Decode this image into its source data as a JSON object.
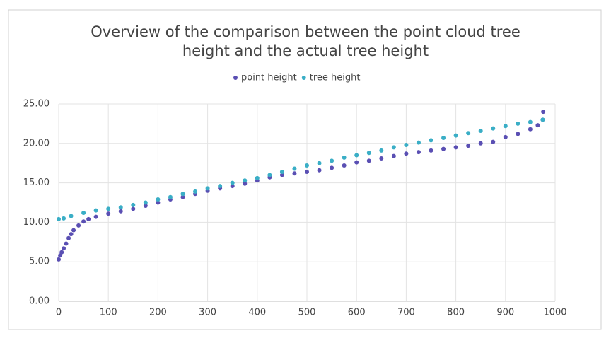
{
  "chart_data": {
    "type": "scatter",
    "title": [
      "Overview of the comparison between the point cloud tree",
      "height and the actual tree height"
    ],
    "series": [
      {
        "name": "point height",
        "color": "#5a4fb3",
        "x": [
          0,
          3,
          6,
          10,
          15,
          20,
          25,
          30,
          40,
          50,
          60,
          75,
          100,
          125,
          150,
          175,
          200,
          225,
          250,
          275,
          300,
          325,
          350,
          375,
          400,
          425,
          450,
          475,
          500,
          525,
          550,
          575,
          600,
          625,
          650,
          675,
          700,
          725,
          750,
          775,
          800,
          825,
          850,
          875,
          900,
          925,
          950,
          965,
          975,
          976
        ],
        "values": [
          5.3,
          5.8,
          6.2,
          6.7,
          7.3,
          8.0,
          8.5,
          9.0,
          9.6,
          10.1,
          10.4,
          10.7,
          11.1,
          11.4,
          11.7,
          12.1,
          12.5,
          12.9,
          13.2,
          13.6,
          14.0,
          14.3,
          14.6,
          14.9,
          15.3,
          15.7,
          16.0,
          16.2,
          16.4,
          16.6,
          16.9,
          17.2,
          17.6,
          17.8,
          18.1,
          18.4,
          18.7,
          18.9,
          19.1,
          19.3,
          19.5,
          19.7,
          20.0,
          20.2,
          20.8,
          21.2,
          21.8,
          22.3,
          23.0,
          24.0
        ]
      },
      {
        "name": "tree height",
        "color": "#3aaec6",
        "x": [
          0,
          10,
          25,
          50,
          75,
          100,
          125,
          150,
          175,
          200,
          225,
          250,
          275,
          300,
          325,
          350,
          375,
          400,
          425,
          450,
          475,
          500,
          525,
          550,
          575,
          600,
          625,
          650,
          675,
          700,
          725,
          750,
          775,
          800,
          825,
          850,
          875,
          900,
          925,
          950,
          975
        ],
        "values": [
          10.4,
          10.5,
          10.8,
          11.2,
          11.5,
          11.7,
          11.9,
          12.2,
          12.5,
          12.9,
          13.2,
          13.6,
          13.9,
          14.3,
          14.6,
          15.0,
          15.3,
          15.6,
          16.0,
          16.4,
          16.8,
          17.2,
          17.5,
          17.8,
          18.2,
          18.5,
          18.8,
          19.1,
          19.5,
          19.8,
          20.1,
          20.4,
          20.7,
          21.0,
          21.3,
          21.6,
          21.9,
          22.2,
          22.5,
          22.7,
          23.0
        ]
      }
    ],
    "xlim": [
      0,
      1000
    ],
    "xticks": [
      0,
      100,
      200,
      300,
      400,
      500,
      600,
      700,
      800,
      900,
      1000
    ],
    "ylim": [
      0,
      25
    ],
    "yticks": [
      {
        "value": 0,
        "label": "0.00"
      },
      {
        "value": 5,
        "label": "5.00"
      },
      {
        "value": 10,
        "label": "10.00"
      },
      {
        "value": 15,
        "label": "15.00"
      },
      {
        "value": 20,
        "label": "20.00"
      },
      {
        "value": 25,
        "label": "25.00"
      }
    ],
    "grid": true,
    "legend": "top"
  }
}
